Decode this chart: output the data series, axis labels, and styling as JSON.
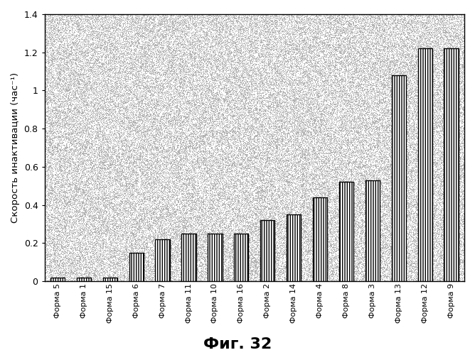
{
  "categories": [
    "Форма 5",
    "Форма 1",
    "Форма 15",
    "Форма 6",
    "Форма 7",
    "Форма 11",
    "Форма 10",
    "Форма 16",
    "Форма 2",
    "Форма 14",
    "Форма 4",
    "Форма 8",
    "Форма 3",
    "Форма 13",
    "Форма 12",
    "Форма 9"
  ],
  "values": [
    0.02,
    0.02,
    0.02,
    0.15,
    0.22,
    0.25,
    0.25,
    0.25,
    0.32,
    0.35,
    0.44,
    0.52,
    0.53,
    1.08,
    1.22,
    1.22
  ],
  "bar_color": "white",
  "bar_edgecolor": "#000000",
  "background_color": "white",
  "noise_density": 0.45,
  "ylabel": "Скорость инактивации (час⁻¹)",
  "ylim": [
    0,
    1.4
  ],
  "yticks": [
    0,
    0.2,
    0.4,
    0.6,
    0.8,
    1.0,
    1.2,
    1.4
  ],
  "caption": "Фиг. 32",
  "bar_width": 0.55
}
